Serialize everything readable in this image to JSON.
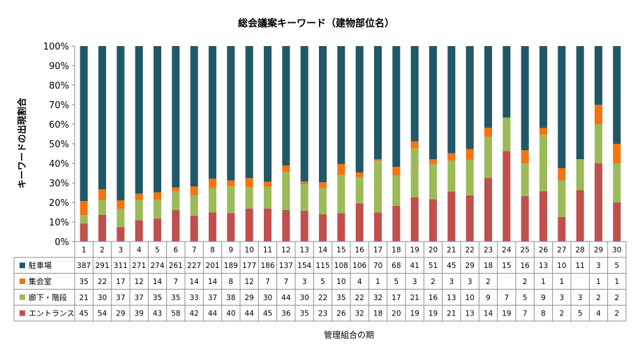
{
  "chart_data": {
    "type": "bar",
    "stacked": "percent",
    "title": "総会議案キーワード（建物部位名）",
    "xlabel": "管理組合の期",
    "ylabel": "キーワードの出現割合",
    "ylim": [
      0,
      100
    ],
    "yticks": [
      "0%",
      "10%",
      "20%",
      "30%",
      "40%",
      "50%",
      "60%",
      "70%",
      "80%",
      "90%",
      "100%"
    ],
    "grid": false,
    "legend": "table-left",
    "categories": [
      "1",
      "2",
      "3",
      "4",
      "5",
      "6",
      "7",
      "8",
      "9",
      "10",
      "11",
      "12",
      "13",
      "14",
      "15",
      "16",
      "17",
      "18",
      "19",
      "20",
      "21",
      "22",
      "23",
      "24",
      "25",
      "26",
      "27",
      "28",
      "29",
      "30"
    ],
    "series": [
      {
        "name": "駐車場",
        "color": "#215868",
        "values": [
          387,
          291,
          311,
          271,
          274,
          261,
          227,
          201,
          189,
          177,
          186,
          137,
          154,
          115,
          108,
          106,
          70,
          68,
          41,
          51,
          45,
          29,
          18,
          15,
          16,
          13,
          10,
          11,
          3,
          5
        ]
      },
      {
        "name": "集会室",
        "color": "#f3750f",
        "values": [
          35,
          22,
          17,
          12,
          14,
          7,
          14,
          14,
          8,
          12,
          7,
          7,
          3,
          5,
          10,
          4,
          1,
          5,
          3,
          2,
          3,
          3,
          2,
          null,
          2,
          1,
          1,
          null,
          1,
          1
        ]
      },
      {
        "name": "廊下・階段",
        "color": "#9bbb59",
        "values": [
          21,
          30,
          37,
          37,
          35,
          35,
          33,
          37,
          38,
          29,
          30,
          44,
          30,
          22,
          35,
          22,
          32,
          17,
          21,
          16,
          13,
          10,
          9,
          7,
          5,
          9,
          3,
          3,
          2,
          2
        ]
      },
      {
        "name": "エントランス",
        "color": "#c0504d",
        "values": [
          45,
          54,
          29,
          39,
          43,
          58,
          42,
          44,
          40,
          44,
          45,
          36,
          35,
          23,
          26,
          32,
          18,
          20,
          19,
          19,
          21,
          13,
          14,
          19,
          7,
          8,
          2,
          5,
          4,
          2
        ]
      }
    ]
  }
}
